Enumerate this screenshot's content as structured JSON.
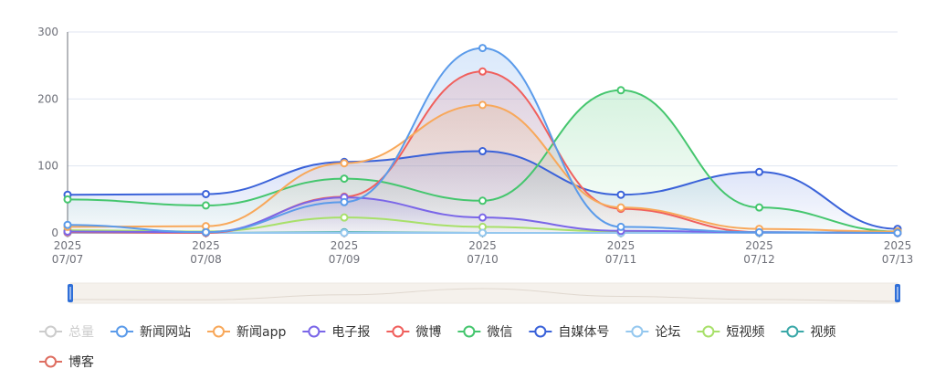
{
  "chart_data": {
    "type": "line",
    "smooth": true,
    "x": [
      "2025\n07/07",
      "2025\n07/08",
      "2025\n07/09",
      "2025\n07/10",
      "2025\n07/11",
      "2025\n07/12",
      "2025\n07/13"
    ],
    "ylim": [
      0,
      300
    ],
    "yticks": [
      0,
      100,
      200,
      300
    ],
    "grid": true,
    "legend_position": "bottom",
    "series": [
      {
        "name": "总量",
        "color": "#cccccc",
        "values": null,
        "selected": false
      },
      {
        "name": "新闻网站",
        "color": "#5b9bea",
        "values": [
          12,
          1,
          46,
          276,
          9,
          1,
          0
        ],
        "area": true
      },
      {
        "name": "新闻app",
        "color": "#f8a85a",
        "values": [
          9,
          10,
          104,
          191,
          38,
          6,
          2
        ],
        "area": true
      },
      {
        "name": "电子报",
        "color": "#7a66e8",
        "values": [
          2,
          1,
          53,
          23,
          3,
          1,
          0
        ],
        "area": true
      },
      {
        "name": "微博",
        "color": "#f0605d",
        "values": [
          1,
          0,
          54,
          241,
          36,
          1,
          0
        ],
        "area": true
      },
      {
        "name": "微信",
        "color": "#45c66e",
        "values": [
          50,
          41,
          81,
          48,
          213,
          38,
          2
        ],
        "area": true
      },
      {
        "name": "自媒体号",
        "color": "#3a62d9",
        "values": [
          57,
          58,
          106,
          122,
          57,
          91,
          6
        ],
        "area": true
      },
      {
        "name": "论坛",
        "color": "#95c8ef",
        "values": [
          0,
          0,
          0,
          0,
          0,
          0,
          0
        ]
      },
      {
        "name": "短视频",
        "color": "#a8e06a",
        "values": [
          4,
          2,
          23,
          9,
          2,
          0,
          0
        ]
      },
      {
        "name": "视频",
        "color": "#3aa8a8",
        "values": [
          1,
          0,
          1,
          0,
          0,
          0,
          0
        ]
      },
      {
        "name": "博客",
        "color": "#de6e61",
        "values": [
          0,
          0,
          0,
          0,
          0,
          0,
          0
        ]
      }
    ]
  }
}
